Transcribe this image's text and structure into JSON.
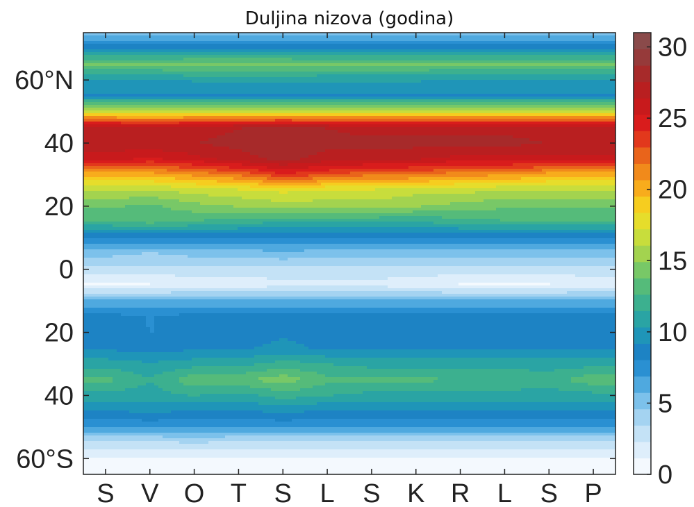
{
  "chart_data": {
    "type": "heatmap",
    "title": "Duljina nizova (godina)",
    "xlabel": "",
    "ylabel": "",
    "x_tick_labels": [
      "S",
      "V",
      "O",
      "T",
      "S",
      "L",
      "S",
      "K",
      "R",
      "L",
      "S",
      "P"
    ],
    "y_ticks": [
      {
        "value": 60,
        "label": "60°N"
      },
      {
        "value": 40,
        "label": "40"
      },
      {
        "value": 20,
        "label": "20"
      },
      {
        "value": 0,
        "label": "0"
      },
      {
        "value": -20,
        "label": "20"
      },
      {
        "value": -40,
        "label": "40"
      },
      {
        "value": -60,
        "label": "60°S"
      }
    ],
    "ylim": [
      -65,
      75
    ],
    "colorbar": {
      "ticks": [
        0,
        5,
        10,
        15,
        20,
        25,
        30
      ],
      "range": [
        0,
        31
      ],
      "colors": [
        "#f4f9fe",
        "#deeefb",
        "#c4e2f6",
        "#a4d3f1",
        "#7cc1eb",
        "#4fa9df",
        "#2a90d2",
        "#1d83c4",
        "#1f95b8",
        "#2aa4a4",
        "#3cb08f",
        "#55bb7a",
        "#78c867",
        "#a3d34f",
        "#c8dd3c",
        "#e6dd2b",
        "#f6cd1f",
        "#f8ac1c",
        "#f18a1b",
        "#e9641b",
        "#e2381c",
        "#d91c1c",
        "#c81a1c",
        "#b91f20",
        "#a72a2a",
        "#963a3a",
        "#8a4a4a"
      ]
    },
    "latitudes": [
      -65,
      -60,
      -55,
      -50,
      -45,
      -40,
      -35,
      -30,
      -25,
      -20,
      -15,
      -10,
      -5,
      0,
      5,
      10,
      15,
      20,
      25,
      30,
      35,
      40,
      45,
      50,
      55,
      60,
      65,
      70,
      75
    ],
    "values": [
      [
        1,
        1,
        1,
        1,
        1,
        1,
        1,
        1,
        1,
        1,
        1,
        1
      ],
      [
        1,
        1,
        1,
        1,
        1,
        1,
        1,
        1,
        1,
        1,
        1,
        1
      ],
      [
        3,
        3,
        3.5,
        3,
        3,
        3,
        3,
        3,
        3,
        3,
        3,
        3
      ],
      [
        7,
        7,
        7,
        7,
        7,
        7,
        7,
        7,
        7,
        7,
        7,
        7
      ],
      [
        9,
        9.5,
        9,
        9,
        9.5,
        9,
        9,
        9,
        9,
        9,
        9,
        9
      ],
      [
        11,
        11,
        11.5,
        11,
        12,
        11.5,
        11,
        11,
        11,
        11,
        11,
        11
      ],
      [
        13,
        11.5,
        13.5,
        13.5,
        14.5,
        13,
        13,
        13,
        12.5,
        12.5,
        12,
        13.5
      ],
      [
        11,
        10.5,
        11,
        11,
        12,
        11.5,
        11,
        11,
        11,
        11,
        11,
        11
      ],
      [
        9,
        8.5,
        9,
        9,
        9.5,
        9,
        9,
        9,
        9,
        9,
        9,
        9
      ],
      [
        9,
        8,
        8.5,
        8.5,
        9,
        8.5,
        8.5,
        8.5,
        8.5,
        8.5,
        8.5,
        8.5
      ],
      [
        8.5,
        8,
        8.5,
        8.5,
        8.5,
        8.5,
        8.5,
        8.5,
        8.5,
        8.5,
        8.5,
        8.5
      ],
      [
        6,
        6,
        6,
        6,
        6,
        6,
        6,
        6,
        6,
        6,
        6,
        6
      ],
      [
        1,
        1,
        1.5,
        1.5,
        2,
        2,
        2,
        1.5,
        1,
        1,
        1,
        1.5
      ],
      [
        3,
        3,
        3,
        3,
        3,
        3,
        3,
        3,
        3,
        3,
        3,
        3
      ],
      [
        5,
        4.5,
        5,
        5,
        5.5,
        5,
        5,
        5,
        5,
        5,
        5,
        5
      ],
      [
        8,
        8,
        8,
        8,
        8,
        8,
        8,
        8,
        8,
        8,
        8,
        8
      ],
      [
        12.5,
        13,
        12.5,
        12,
        11.5,
        11.5,
        11.5,
        11.5,
        12,
        12.5,
        12.5,
        12.5
      ],
      [
        14,
        13.5,
        14.5,
        15,
        15.5,
        15.5,
        15.5,
        15,
        14.5,
        14,
        14,
        14
      ],
      [
        16,
        16,
        16.5,
        17,
        17.5,
        17,
        17,
        16.5,
        16.5,
        16,
        16,
        16
      ],
      [
        20,
        20,
        21,
        22,
        24,
        23,
        22,
        22,
        21,
        21,
        20,
        20
      ],
      [
        26,
        25,
        26,
        27,
        28,
        27,
        27,
        26.5,
        26,
        26,
        26,
        26
      ],
      [
        27,
        27.5,
        27.5,
        28,
        28.5,
        28,
        28,
        28,
        28,
        28,
        27.5,
        27.5
      ],
      [
        27,
        26.5,
        27,
        27.5,
        28,
        27.5,
        27,
        27,
        27,
        27,
        27,
        27
      ],
      [
        17,
        17,
        17,
        17,
        17,
        17,
        17,
        17,
        17,
        17,
        17,
        17
      ],
      [
        9,
        9,
        9,
        9,
        9,
        9,
        9,
        9,
        9,
        9,
        9,
        9
      ],
      [
        10,
        10,
        10.5,
        10.5,
        10.5,
        10.5,
        10.5,
        10.5,
        10,
        10,
        10,
        10
      ],
      [
        14,
        14,
        14.5,
        14.5,
        14.5,
        14,
        14,
        14,
        14,
        14,
        14,
        14
      ],
      [
        9,
        9,
        9,
        9,
        9,
        9,
        9,
        9,
        9,
        9,
        9,
        9
      ],
      [
        5,
        5,
        5,
        5,
        5,
        5,
        5,
        5,
        5,
        5,
        5,
        5
      ]
    ]
  }
}
